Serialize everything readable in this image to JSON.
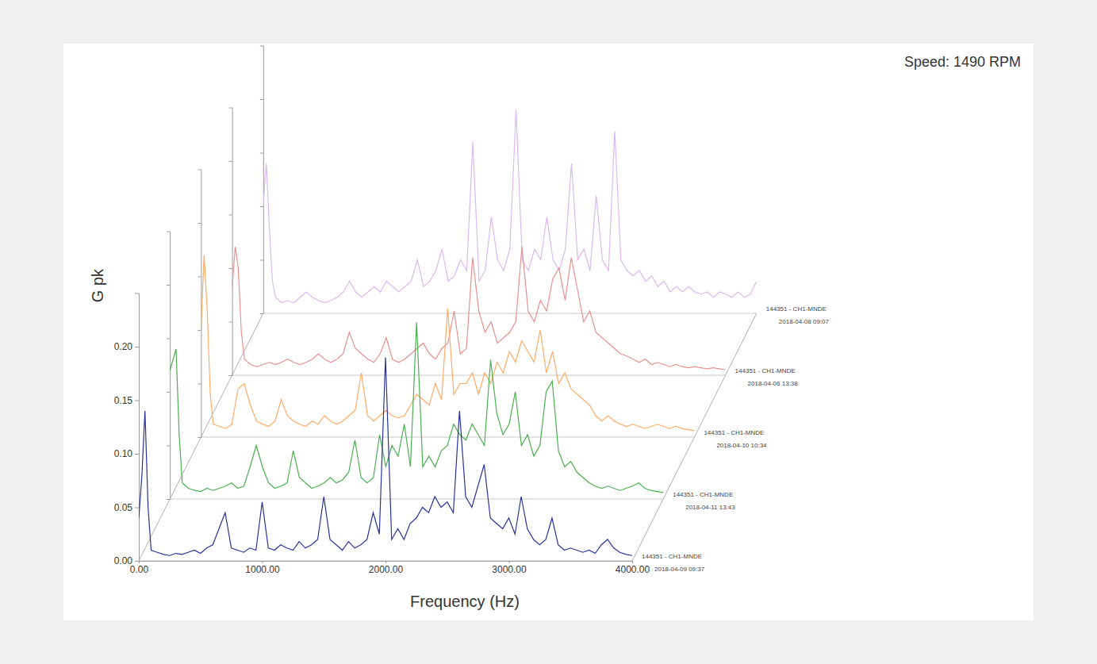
{
  "chart_data": {
    "type": "line",
    "title": "Speed: 1490 RPM",
    "x_label": "Frequency (Hz)",
    "y_label": "G pk",
    "xlim": [
      0,
      4000
    ],
    "xticks": [
      {
        "value": 0,
        "label": "0.00"
      },
      {
        "value": 1000,
        "label": "1000.00"
      },
      {
        "value": 2000,
        "label": "2000.00"
      },
      {
        "value": 3000,
        "label": "3000.00"
      },
      {
        "value": 4000,
        "label": "4000.00"
      }
    ],
    "ylim": [
      0,
      0.25
    ],
    "yticks": [
      {
        "value": 0,
        "label": "0.00"
      },
      {
        "value": 0.05,
        "label": "0.05"
      },
      {
        "value": 0.1,
        "label": "0.10"
      },
      {
        "value": 0.15,
        "label": "0.15"
      },
      {
        "value": 0.2,
        "label": "0.20"
      }
    ],
    "x": [
      0,
      25,
      50,
      75,
      100,
      150,
      200,
      250,
      300,
      350,
      400,
      450,
      500,
      550,
      600,
      650,
      700,
      750,
      800,
      850,
      900,
      950,
      1000,
      1050,
      1100,
      1150,
      1200,
      1250,
      1300,
      1350,
      1400,
      1450,
      1500,
      1550,
      1600,
      1650,
      1700,
      1750,
      1800,
      1850,
      1900,
      1950,
      2000,
      2050,
      2100,
      2150,
      2200,
      2250,
      2300,
      2350,
      2400,
      2450,
      2500,
      2550,
      2600,
      2650,
      2700,
      2750,
      2800,
      2850,
      2900,
      2950,
      3000,
      3050,
      3100,
      3150,
      3200,
      3250,
      3300,
      3350,
      3400,
      3450,
      3500,
      3550,
      3600,
      3650,
      3700,
      3750,
      3800,
      3850,
      3900,
      3950,
      4000
    ],
    "series": [
      {
        "name": "144351 - CH1-MNDE",
        "date": "2018-04-09 09:37",
        "color": "#27329a",
        "values": [
          0.04,
          0.08,
          0.14,
          0.05,
          0.01,
          0.008,
          0.006,
          0.005,
          0.007,
          0.006,
          0.008,
          0.01,
          0.007,
          0.012,
          0.015,
          0.03,
          0.045,
          0.012,
          0.01,
          0.008,
          0.012,
          0.01,
          0.055,
          0.012,
          0.01,
          0.015,
          0.012,
          0.01,
          0.018,
          0.012,
          0.015,
          0.02,
          0.06,
          0.02,
          0.015,
          0.01,
          0.018,
          0.012,
          0.015,
          0.02,
          0.045,
          0.025,
          0.19,
          0.02,
          0.03,
          0.02,
          0.035,
          0.04,
          0.05,
          0.045,
          0.06,
          0.05,
          0.055,
          0.045,
          0.14,
          0.06,
          0.05,
          0.07,
          0.09,
          0.04,
          0.035,
          0.03,
          0.04,
          0.025,
          0.06,
          0.03,
          0.02,
          0.015,
          0.02,
          0.04,
          0.015,
          0.01,
          0.012,
          0.01,
          0.008,
          0.01,
          0.007,
          0.015,
          0.02,
          0.012,
          0.008,
          0.006,
          0.005
        ]
      },
      {
        "name": "144351 - CH1-MNDE",
        "date": "2018-04-11 13:43",
        "color": "#4caf50",
        "values": [
          0.12,
          0.13,
          0.14,
          0.06,
          0.015,
          0.01,
          0.008,
          0.007,
          0.01,
          0.008,
          0.01,
          0.012,
          0.015,
          0.01,
          0.012,
          0.03,
          0.05,
          0.03,
          0.015,
          0.01,
          0.012,
          0.015,
          0.045,
          0.02,
          0.015,
          0.01,
          0.012,
          0.015,
          0.02,
          0.015,
          0.018,
          0.025,
          0.055,
          0.02,
          0.015,
          0.02,
          0.06,
          0.03,
          0.05,
          0.04,
          0.07,
          0.03,
          0.165,
          0.03,
          0.04,
          0.03,
          0.045,
          0.05,
          0.07,
          0.06,
          0.055,
          0.07,
          0.06,
          0.05,
          0.13,
          0.08,
          0.06,
          0.07,
          0.1,
          0.05,
          0.06,
          0.04,
          0.05,
          0.1,
          0.11,
          0.045,
          0.03,
          0.035,
          0.025,
          0.02,
          0.015,
          0.012,
          0.01,
          0.012,
          0.01,
          0.008,
          0.01,
          0.012,
          0.015,
          0.01,
          0.008,
          0.007,
          0.006
        ]
      },
      {
        "name": "144351 - CH1-MNDE",
        "date": "2018-04-10 10:34",
        "color": "#ffab66",
        "values": [
          0.1,
          0.17,
          0.12,
          0.04,
          0.012,
          0.01,
          0.008,
          0.012,
          0.045,
          0.05,
          0.03,
          0.015,
          0.012,
          0.01,
          0.015,
          0.035,
          0.02,
          0.015,
          0.012,
          0.01,
          0.015,
          0.012,
          0.02,
          0.015,
          0.012,
          0.015,
          0.02,
          0.025,
          0.06,
          0.02,
          0.015,
          0.02,
          0.025,
          0.02,
          0.018,
          0.02,
          0.03,
          0.04,
          0.035,
          0.03,
          0.05,
          0.035,
          0.12,
          0.04,
          0.05,
          0.05,
          0.06,
          0.04,
          0.06,
          0.05,
          0.07,
          0.06,
          0.08,
          0.07,
          0.09,
          0.08,
          0.07,
          0.1,
          0.06,
          0.08,
          0.05,
          0.06,
          0.045,
          0.04,
          0.035,
          0.03,
          0.02,
          0.015,
          0.02,
          0.015,
          0.012,
          0.01,
          0.012,
          0.01,
          0.008,
          0.01,
          0.012,
          0.01,
          0.008,
          0.01,
          0.008,
          0.007,
          0.006
        ]
      },
      {
        "name": "144351 - CH1-MNDE",
        "date": "2018-04-06 13:38",
        "color": "#e8908e",
        "values": [
          0.08,
          0.12,
          0.1,
          0.04,
          0.015,
          0.01,
          0.008,
          0.01,
          0.012,
          0.01,
          0.012,
          0.015,
          0.012,
          0.01,
          0.012,
          0.015,
          0.02,
          0.015,
          0.012,
          0.015,
          0.02,
          0.04,
          0.025,
          0.02,
          0.015,
          0.012,
          0.02,
          0.035,
          0.015,
          0.012,
          0.015,
          0.02,
          0.025,
          0.03,
          0.02,
          0.015,
          0.025,
          0.03,
          0.06,
          0.02,
          0.025,
          0.11,
          0.06,
          0.04,
          0.05,
          0.03,
          0.035,
          0.04,
          0.05,
          0.12,
          0.06,
          0.05,
          0.07,
          0.06,
          0.09,
          0.1,
          0.07,
          0.11,
          0.08,
          0.05,
          0.06,
          0.04,
          0.035,
          0.03,
          0.025,
          0.02,
          0.018,
          0.015,
          0.012,
          0.015,
          0.01,
          0.012,
          0.01,
          0.008,
          0.01,
          0.008,
          0.007,
          0.008,
          0.007,
          0.006,
          0.007,
          0.006,
          0.005
        ]
      },
      {
        "name": "144351 - CH1-MNDE",
        "date": "2018-04-08 09:07",
        "color": "#dcb8f0",
        "values": [
          0.1,
          0.14,
          0.08,
          0.03,
          0.015,
          0.01,
          0.012,
          0.01,
          0.015,
          0.02,
          0.015,
          0.012,
          0.01,
          0.012,
          0.015,
          0.02,
          0.03,
          0.02,
          0.015,
          0.02,
          0.025,
          0.02,
          0.03,
          0.025,
          0.02,
          0.025,
          0.03,
          0.05,
          0.025,
          0.03,
          0.04,
          0.06,
          0.03,
          0.035,
          0.05,
          0.04,
          0.16,
          0.03,
          0.04,
          0.09,
          0.05,
          0.04,
          0.06,
          0.19,
          0.05,
          0.04,
          0.06,
          0.05,
          0.09,
          0.05,
          0.04,
          0.06,
          0.14,
          0.05,
          0.06,
          0.04,
          0.11,
          0.05,
          0.04,
          0.17,
          0.05,
          0.04,
          0.035,
          0.04,
          0.03,
          0.035,
          0.025,
          0.03,
          0.02,
          0.025,
          0.02,
          0.025,
          0.02,
          0.018,
          0.02,
          0.015,
          0.02,
          0.018,
          0.015,
          0.02,
          0.015,
          0.018,
          0.03
        ]
      }
    ]
  }
}
